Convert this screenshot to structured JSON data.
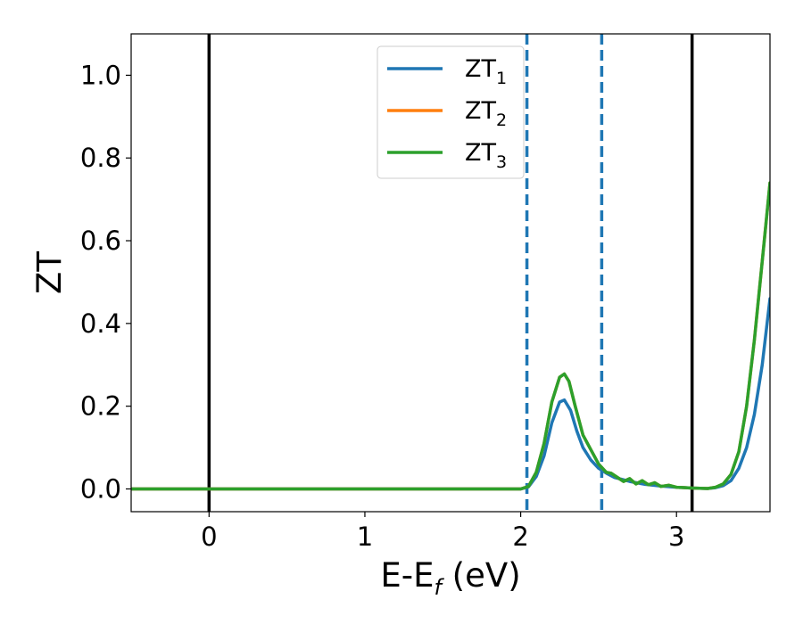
{
  "chart_data": {
    "type": "line",
    "xlabel_main": "E-E",
    "xlabel_sub": "f",
    "xlabel_unit": " (eV)",
    "ylabel": "ZT",
    "xlim": [
      -0.5,
      3.6
    ],
    "ylim": [
      -0.055,
      1.1
    ],
    "x_ticks": [
      0,
      1,
      2,
      3
    ],
    "x_tick_labels": [
      "0",
      "1",
      "2",
      "3"
    ],
    "y_ticks": [
      0.0,
      0.2,
      0.4,
      0.6,
      0.8,
      1.0
    ],
    "y_tick_labels": [
      "0.0",
      "0.2",
      "0.4",
      "0.6",
      "0.8",
      "1.0"
    ],
    "grid": false,
    "legend_position": "top-center",
    "vlines": [
      {
        "x": 0.0,
        "style": "solid",
        "color": "#000000"
      },
      {
        "x": 3.1,
        "style": "solid",
        "color": "#000000"
      },
      {
        "x": 2.04,
        "style": "dashed",
        "color": "#1f77b4"
      },
      {
        "x": 2.52,
        "style": "dashed",
        "color": "#1f77b4"
      }
    ],
    "series": [
      {
        "name_main": "ZT",
        "name_sub": "1",
        "color": "#1f77b4",
        "x": [
          -0.5,
          2.0,
          2.05,
          2.1,
          2.15,
          2.2,
          2.25,
          2.28,
          2.32,
          2.36,
          2.4,
          2.45,
          2.5,
          2.55,
          2.6,
          2.7,
          2.8,
          2.9,
          3.0,
          3.1,
          3.2,
          3.25,
          3.3,
          3.35,
          3.4,
          3.45,
          3.5,
          3.55,
          3.6
        ],
        "y": [
          0.0,
          0.0,
          0.005,
          0.03,
          0.08,
          0.16,
          0.21,
          0.215,
          0.19,
          0.14,
          0.1,
          0.07,
          0.05,
          0.038,
          0.028,
          0.018,
          0.011,
          0.007,
          0.004,
          0.002,
          0.001,
          0.003,
          0.008,
          0.02,
          0.05,
          0.1,
          0.18,
          0.3,
          0.46
        ]
      },
      {
        "name_main": "ZT",
        "name_sub": "2",
        "color": "#ff7f0e",
        "x": [
          -0.5,
          2.0,
          2.05,
          2.1,
          2.15,
          2.2,
          2.25,
          2.28,
          2.31,
          2.35,
          2.4,
          2.45,
          2.5,
          2.55,
          2.58,
          2.62,
          2.66,
          2.7,
          2.74,
          2.78,
          2.82,
          2.86,
          2.9,
          2.95,
          3.0,
          3.1,
          3.2,
          3.25,
          3.3,
          3.35,
          3.4,
          3.45,
          3.5,
          3.55,
          3.6
        ],
        "y": [
          0.0,
          0.0,
          0.006,
          0.04,
          0.11,
          0.21,
          0.27,
          0.278,
          0.26,
          0.2,
          0.13,
          0.095,
          0.06,
          0.04,
          0.038,
          0.028,
          0.018,
          0.025,
          0.012,
          0.02,
          0.01,
          0.015,
          0.006,
          0.009,
          0.004,
          0.002,
          0.001,
          0.004,
          0.012,
          0.035,
          0.09,
          0.2,
          0.36,
          0.55,
          0.74
        ]
      },
      {
        "name_main": "ZT",
        "name_sub": "3",
        "color": "#2ca02c",
        "x": [
          -0.5,
          2.0,
          2.05,
          2.1,
          2.15,
          2.2,
          2.25,
          2.28,
          2.31,
          2.35,
          2.4,
          2.45,
          2.5,
          2.55,
          2.58,
          2.62,
          2.66,
          2.7,
          2.74,
          2.78,
          2.82,
          2.86,
          2.9,
          2.95,
          3.0,
          3.1,
          3.2,
          3.25,
          3.3,
          3.35,
          3.4,
          3.45,
          3.5,
          3.55,
          3.6
        ],
        "y": [
          0.0,
          0.0,
          0.006,
          0.04,
          0.11,
          0.21,
          0.27,
          0.278,
          0.26,
          0.2,
          0.13,
          0.095,
          0.06,
          0.04,
          0.038,
          0.028,
          0.018,
          0.025,
          0.012,
          0.02,
          0.01,
          0.015,
          0.006,
          0.009,
          0.004,
          0.002,
          0.001,
          0.004,
          0.012,
          0.035,
          0.09,
          0.2,
          0.36,
          0.55,
          0.74
        ]
      }
    ]
  }
}
